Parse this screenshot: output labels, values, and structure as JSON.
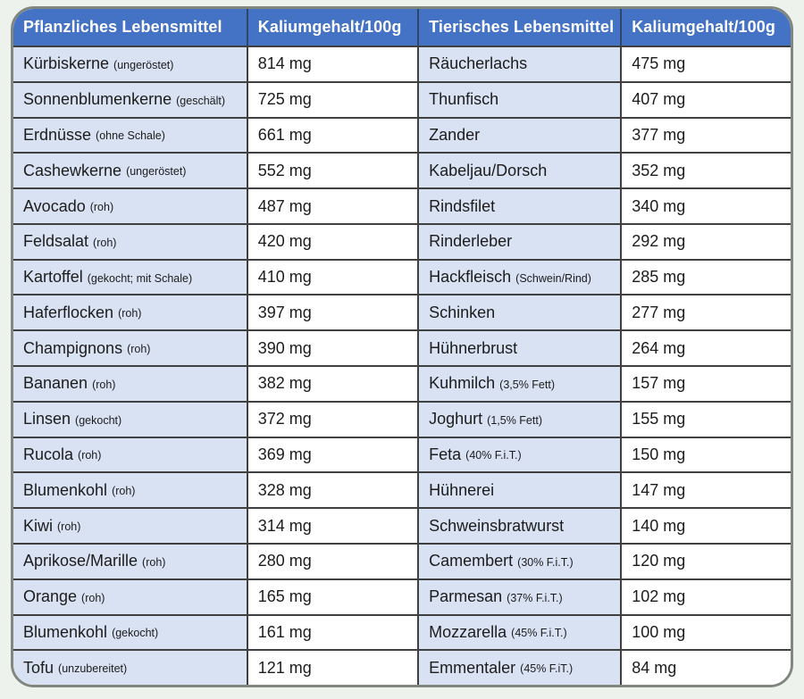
{
  "page": {
    "background_color": "#edf2ed"
  },
  "table": {
    "style": {
      "header_bg": "#4472c4",
      "header_text_color": "#ffffff",
      "name_cell_bg": "#d9e2f3",
      "value_cell_bg": "#ffffff",
      "grid_color": "#404040",
      "outer_border_color": "#81867f",
      "text_color": "#1c1c1c"
    },
    "headers": {
      "plant": "Pflanzliches Lebensmittel",
      "plant_value": "Kaliumgehalt/100g",
      "animal": "Tierisches Lebensmittel",
      "animal_value": "Kaliumgehalt/100g"
    },
    "rows": [
      {
        "plant_name": "Kürbiskerne",
        "plant_note": "(ungeröstet)",
        "plant_value": "814 mg",
        "animal_name": "Räucherlachs",
        "animal_note": "",
        "animal_value": "475 mg"
      },
      {
        "plant_name": "Sonnenblumenkerne",
        "plant_note": "(geschält)",
        "plant_value": "725 mg",
        "animal_name": "Thunfisch",
        "animal_note": "",
        "animal_value": "407 mg"
      },
      {
        "plant_name": "Erdnüsse",
        "plant_note": "(ohne Schale)",
        "plant_value": "661 mg",
        "animal_name": "Zander",
        "animal_note": "",
        "animal_value": "377 mg"
      },
      {
        "plant_name": "Cashewkerne",
        "plant_note": "(ungeröstet)",
        "plant_value": "552 mg",
        "animal_name": "Kabeljau/Dorsch",
        "animal_note": "",
        "animal_value": "352 mg"
      },
      {
        "plant_name": "Avocado",
        "plant_note": "(roh)",
        "plant_value": "487 mg",
        "animal_name": "Rindsfilet",
        "animal_note": "",
        "animal_value": "340 mg"
      },
      {
        "plant_name": "Feldsalat",
        "plant_note": "(roh)",
        "plant_value": "420 mg",
        "animal_name": "Rinderleber",
        "animal_note": "",
        "animal_value": "292 mg"
      },
      {
        "plant_name": "Kartoffel",
        "plant_note": "(gekocht; mit Schale)",
        "plant_value": "410 mg",
        "animal_name": "Hackfleisch",
        "animal_note": "(Schwein/Rind)",
        "animal_value": "285 mg"
      },
      {
        "plant_name": "Haferflocken",
        "plant_note": "(roh)",
        "plant_value": "397 mg",
        "animal_name": "Schinken",
        "animal_note": "",
        "animal_value": "277 mg"
      },
      {
        "plant_name": "Champignons",
        "plant_note": "(roh)",
        "plant_value": "390 mg",
        "animal_name": "Hühnerbrust",
        "animal_note": "",
        "animal_value": "264 mg"
      },
      {
        "plant_name": "Bananen",
        "plant_note": "(roh)",
        "plant_value": "382 mg",
        "animal_name": "Kuhmilch",
        "animal_note": "(3,5% Fett)",
        "animal_value": "157 mg"
      },
      {
        "plant_name": "Linsen",
        "plant_note": "(gekocht)",
        "plant_value": "372 mg",
        "animal_name": "Joghurt",
        "animal_note": "(1,5% Fett)",
        "animal_value": "155 mg"
      },
      {
        "plant_name": "Rucola",
        "plant_note": "(roh)",
        "plant_value": "369 mg",
        "animal_name": "Feta",
        "animal_note": "(40% F.i.T.)",
        "animal_value": "150 mg"
      },
      {
        "plant_name": "Blumenkohl",
        "plant_note": "(roh)",
        "plant_value": "328 mg",
        "animal_name": "Hühnerei",
        "animal_note": "",
        "animal_value": "147 mg"
      },
      {
        "plant_name": "Kiwi",
        "plant_note": "(roh)",
        "plant_value": "314 mg",
        "animal_name": "Schweinsbratwurst",
        "animal_note": "",
        "animal_value": "140 mg"
      },
      {
        "plant_name": "Aprikose/Marille",
        "plant_note": "(roh)",
        "plant_value": "280 mg",
        "animal_name": "Camembert",
        "animal_note": "(30% F.i.T.)",
        "animal_value": "120 mg"
      },
      {
        "plant_name": "Orange",
        "plant_note": "(roh)",
        "plant_value": "165 mg",
        "animal_name": "Parmesan",
        "animal_note": "(37% F.i.T.)",
        "animal_value": "102 mg"
      },
      {
        "plant_name": "Blumenkohl",
        "plant_note": "(gekocht)",
        "plant_value": "161 mg",
        "animal_name": "Mozzarella",
        "animal_note": "(45% F.i.T.)",
        "animal_value": "100 mg"
      },
      {
        "plant_name": "Tofu",
        "plant_note": "(unzubereitet)",
        "plant_value": "121 mg",
        "animal_name": "Emmentaler",
        "animal_note": "(45% F.iT.)",
        "animal_value": "84 mg"
      }
    ]
  }
}
